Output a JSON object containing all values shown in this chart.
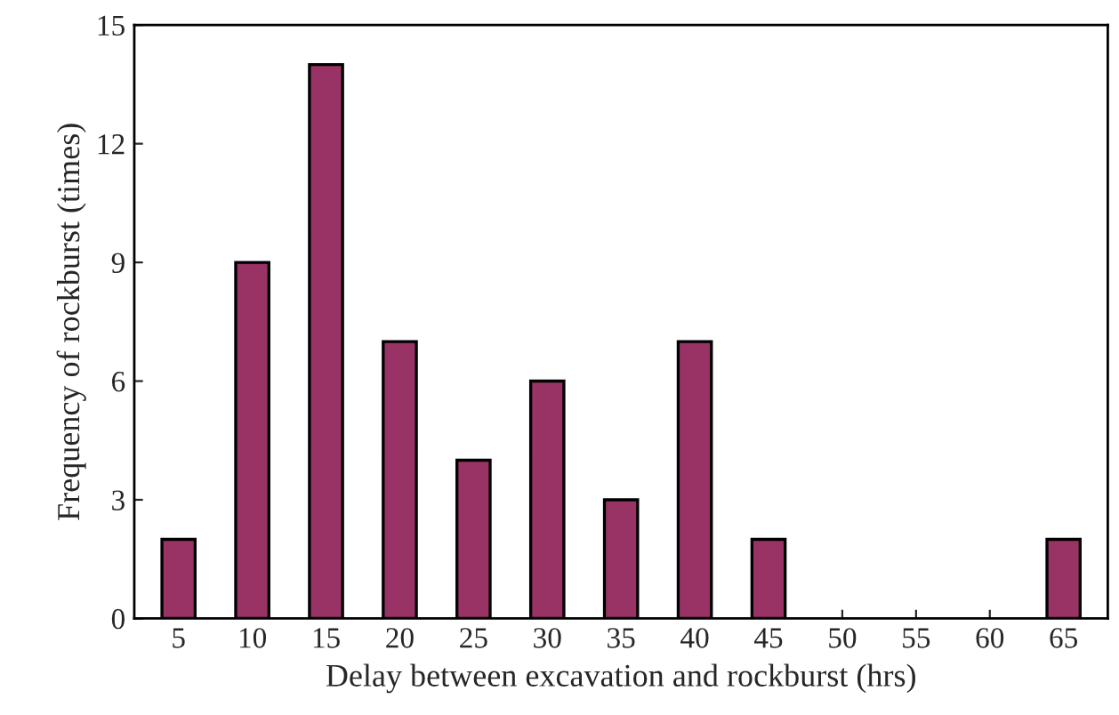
{
  "chart_data": {
    "type": "bar",
    "xlabel": "Delay between excavation and rockburst (hrs)",
    "ylabel": "Frequency of rockburst (times)",
    "categories": [
      "5",
      "10",
      "15",
      "20",
      "25",
      "30",
      "35",
      "40",
      "45",
      "50",
      "55",
      "60",
      "65"
    ],
    "values": [
      2,
      9,
      14,
      7,
      4,
      6,
      3,
      7,
      2,
      0,
      0,
      0,
      2
    ],
    "color": "#993366",
    "ylim": [
      0,
      15
    ],
    "yticks": [
      0,
      3,
      6,
      9,
      12,
      15
    ],
    "grid": false,
    "legend": false
  }
}
